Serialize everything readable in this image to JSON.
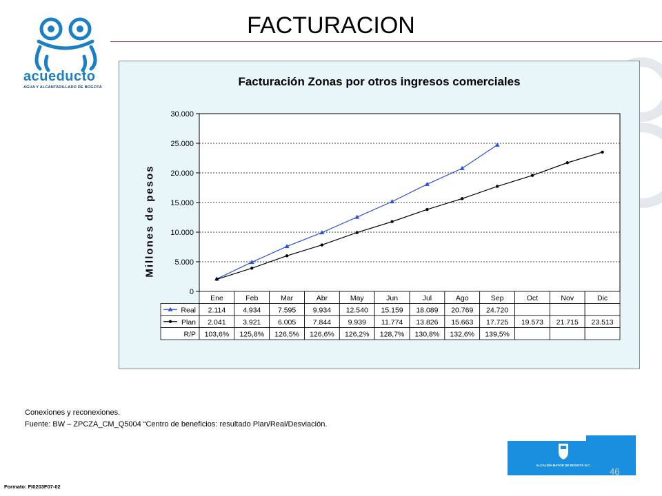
{
  "slide": {
    "title": "FACTURACION"
  },
  "logo": {
    "name": "acueducto",
    "subtitle": "AGUA Y ALCANTARILLADO DE BOGOTÁ"
  },
  "colors": {
    "real": "#2a4fd8",
    "plan": "#000000",
    "plot_bg": "#ffffff",
    "frame_bg": "#e8f6fa",
    "accent": "#1a7fc4"
  },
  "chart_data": {
    "type": "line",
    "title": "Facturación Zonas por otros ingresos comerciales",
    "ylabel": "Millones de pesos",
    "xlabel": "",
    "categories": [
      "Ene",
      "Feb",
      "Mar",
      "Abr",
      "May",
      "Jun",
      "Jul",
      "Ago",
      "Sep",
      "Oct",
      "Nov",
      "Dic"
    ],
    "series": [
      {
        "name": "Real",
        "values": [
          2114,
          4934,
          7595,
          9934,
          12540,
          15159,
          18089,
          20769,
          24720,
          null,
          null,
          null
        ],
        "marker": "triangle",
        "labels": [
          "2.114",
          "4.934",
          "7.595",
          "9.934",
          "12.540",
          "15.159",
          "18.089",
          "20.769",
          "24.720",
          "",
          "",
          ""
        ]
      },
      {
        "name": "Plan",
        "values": [
          2041,
          3921,
          6005,
          7844,
          9939,
          11774,
          13826,
          15663,
          17725,
          19573,
          21715,
          23513
        ],
        "marker": "dot",
        "labels": [
          "2.041",
          "3.921",
          "6.005",
          "7.844",
          "9.939",
          "11.774",
          "13.826",
          "15.663",
          "17.725",
          "19.573",
          "21.715",
          "23.513"
        ]
      }
    ],
    "table_rows": [
      {
        "name": "R/P",
        "labels": [
          "103,6%",
          "125,8%",
          "126,5%",
          "126,6%",
          "126,2%",
          "128,7%",
          "130,8%",
          "132,6%",
          "139,5%",
          "",
          "",
          ""
        ]
      }
    ],
    "ylim": [
      0,
      30000
    ],
    "yticks": [
      0,
      5000,
      10000,
      15000,
      20000,
      25000,
      30000
    ],
    "ytick_labels": [
      "0",
      "5.000",
      "10.000",
      "15.000",
      "20.000",
      "25.000",
      "30.000"
    ],
    "grid": true,
    "legend": "data-table"
  },
  "notes": {
    "line1": "Conexiones y reconexiones.",
    "line2": "Fuente:   BW – ZPCZA_CM_Q5004  “Centro  de beneficios: resultado Plan/Real/Desviación."
  },
  "footer": {
    "format": "Formato: FI0203F07-02",
    "page": "46",
    "bogota_label": "ALCALDÍA MAYOR DE BOGOTÁ D.C."
  }
}
